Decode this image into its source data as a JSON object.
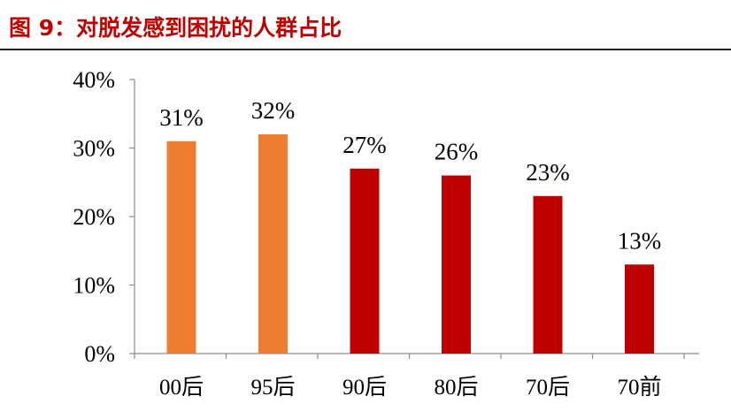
{
  "figure_title": "图 9：对脱发感到困扰的人群占比",
  "chart_data": {
    "type": "bar",
    "title": "",
    "xlabel": "",
    "ylabel": "",
    "categories": [
      "00后",
      "95后",
      "90后",
      "80后",
      "70后",
      "70前"
    ],
    "values": [
      31,
      32,
      27,
      26,
      23,
      13
    ],
    "data_labels": [
      "31%",
      "32%",
      "27%",
      "26%",
      "23%",
      "13%"
    ],
    "bar_colors": [
      "#ed7d31",
      "#ed7d31",
      "#c00000",
      "#c00000",
      "#c00000",
      "#c00000"
    ],
    "ylim": [
      0,
      40
    ],
    "yticks": [
      0,
      10,
      20,
      30,
      40
    ],
    "ytick_labels": [
      "0%",
      "10%",
      "20%",
      "30%",
      "40%"
    ],
    "grid": false,
    "legend": "none"
  }
}
